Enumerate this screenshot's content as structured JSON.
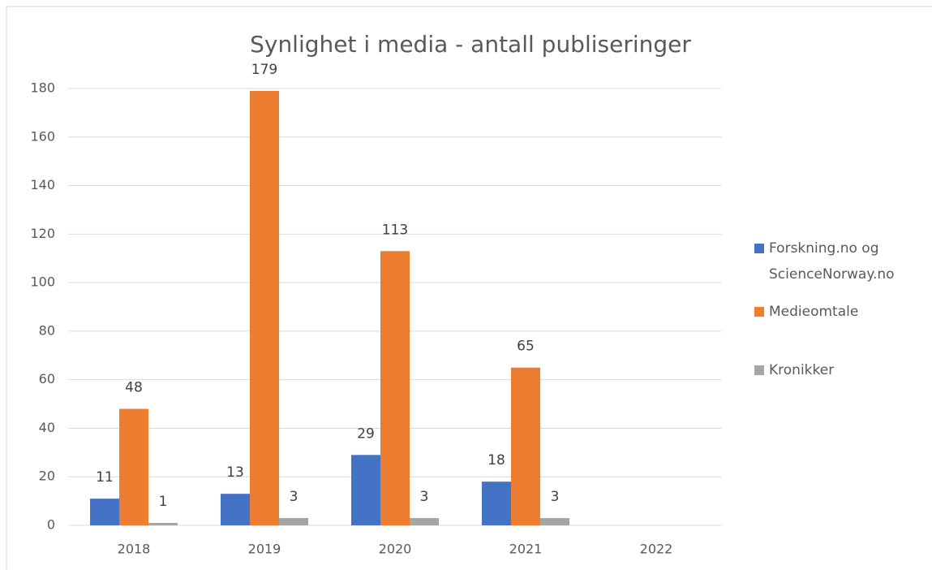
{
  "chart_data": {
    "type": "bar",
    "title": "Synlighet i media - antall publiseringer",
    "categories": [
      "2018",
      "2019",
      "2020",
      "2021",
      "2022"
    ],
    "series": [
      {
        "name": "Forskning.no og ScienceNorway.no",
        "color": "#4472c4",
        "values": [
          11,
          13,
          29,
          18,
          null
        ]
      },
      {
        "name": "Medieomtale",
        "color": "#ed7d31",
        "values": [
          48,
          179,
          113,
          65,
          null
        ]
      },
      {
        "name": "Kronikker",
        "color": "#a5a5a5",
        "values": [
          1,
          3,
          3,
          3,
          null
        ]
      }
    ],
    "ylim": [
      0,
      180
    ],
    "yticks": [
      0,
      20,
      40,
      60,
      80,
      100,
      120,
      140,
      160,
      180
    ],
    "grid": true,
    "legend": "right"
  }
}
